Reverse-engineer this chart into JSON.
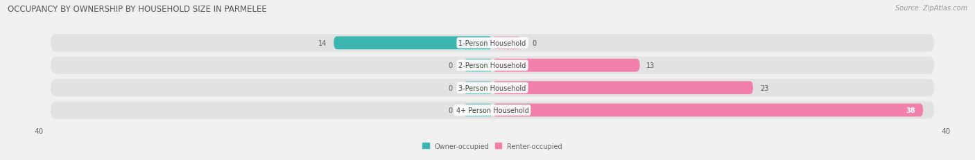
{
  "title": "OCCUPANCY BY OWNERSHIP BY HOUSEHOLD SIZE IN PARMELEE",
  "source": "Source: ZipAtlas.com",
  "categories": [
    "1-Person Household",
    "2-Person Household",
    "3-Person Household",
    "4+ Person Household"
  ],
  "owner_values": [
    14,
    0,
    0,
    0
  ],
  "renter_values": [
    0,
    13,
    23,
    38
  ],
  "owner_color": "#3ab5b0",
  "renter_color": "#f07faa",
  "owner_label": "Owner-occupied",
  "renter_label": "Renter-occupied",
  "xlim": [
    -40,
    40
  ],
  "xtick_left": -40,
  "xtick_right": 40,
  "bg_color": "#f0f0f0",
  "bar_bg_color": "#e2e2e2",
  "title_fontsize": 8.5,
  "label_fontsize": 7.0,
  "tick_fontsize": 7.5,
  "source_fontsize": 7.0
}
